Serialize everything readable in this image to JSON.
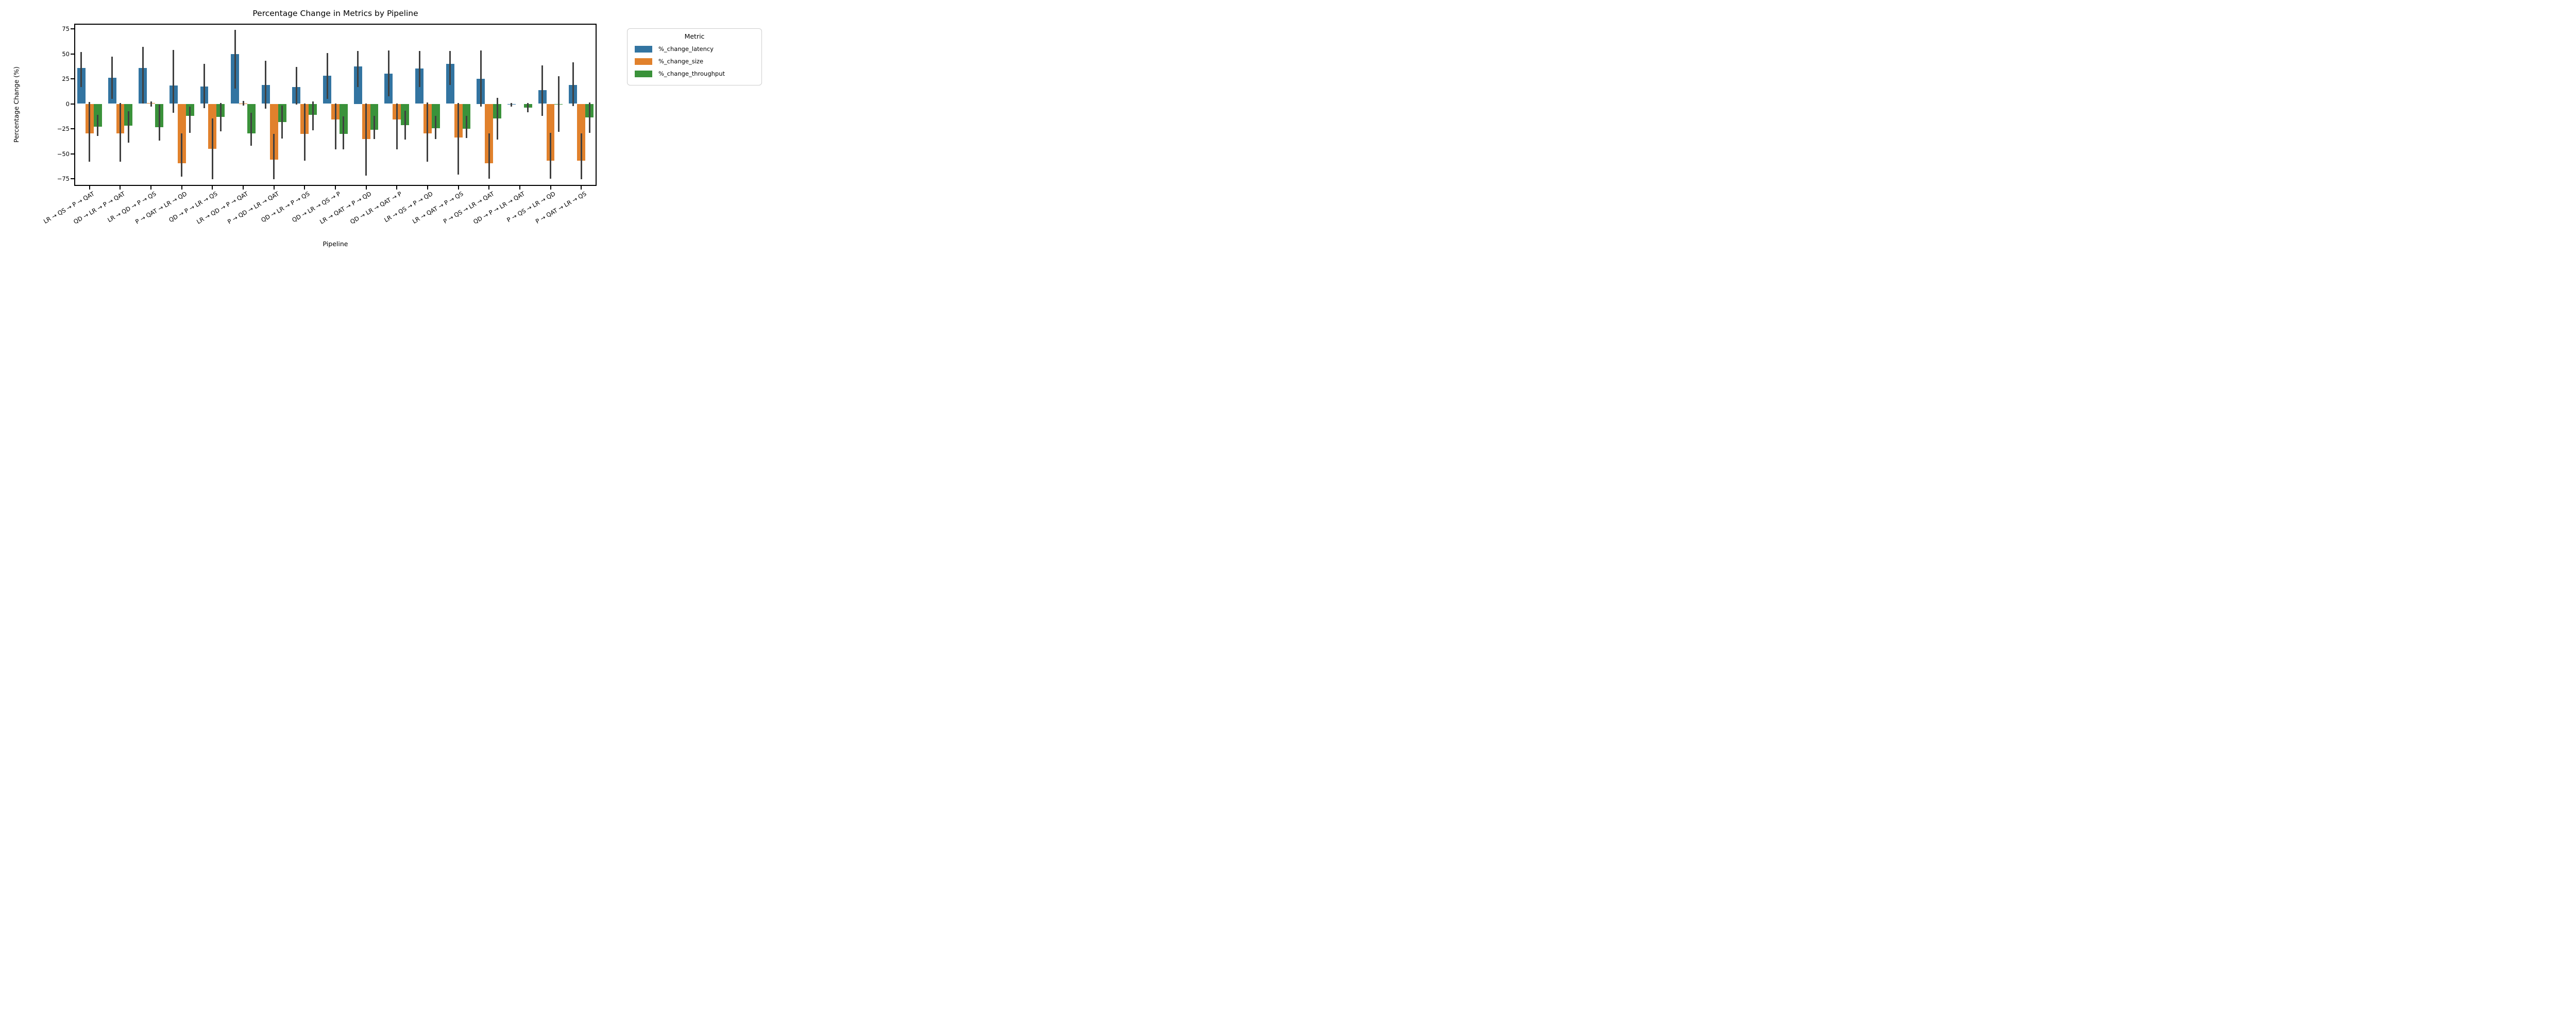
{
  "chart_data": {
    "type": "bar",
    "title": "Percentage Change in Metrics by Pipeline",
    "xlabel": "Pipeline",
    "ylabel": "Percentage Change (%)",
    "ylim": [
      -82,
      80
    ],
    "yticks": [
      75,
      50,
      25,
      0,
      -25,
      -50,
      -75
    ],
    "grid": false,
    "error_bar_color": "#3f3f3f",
    "categories": [
      "LR → QS → P → QAT",
      "QD → LR → P → QAT",
      "LR → QD → P → QS",
      "P → QAT → LR → QD",
      "QD → P → LR → QS",
      "LR → QD → P → QAT",
      "P → QD → LR → QAT",
      "QD → LR → P → QS",
      "QD → LR → QS → P",
      "LR → QAT → P → QD",
      "QD → LR → QAT → P",
      "LR → QS → P → QD",
      "LR → QAT → P → QS",
      "P → QS → LR → QAT",
      "QD → P → LR → QAT",
      "P → QS → LR → QD",
      "P → QAT → LR → QS"
    ],
    "series": [
      {
        "name": "%_change_latency",
        "color": "#3274a1",
        "values": [
          36,
          26,
          36,
          18.5,
          17.5,
          49.5,
          19,
          16.5,
          28,
          37.5,
          30,
          35.5,
          40,
          25,
          -1,
          13.5,
          19
        ],
        "errors": [
          [
            52,
            17
          ],
          [
            47,
            5
          ],
          [
            57,
            0
          ],
          [
            54,
            -9
          ],
          [
            40,
            -4.5
          ],
          [
            74,
            15
          ],
          [
            43,
            -5
          ],
          [
            37,
            -1
          ],
          [
            51,
            5
          ],
          [
            53,
            17
          ],
          [
            53.5,
            7.5
          ],
          [
            53,
            17
          ],
          [
            53,
            19
          ],
          [
            53.5,
            -3
          ],
          [
            1,
            -3
          ],
          [
            38.5,
            -12
          ],
          [
            41.5,
            -2.5
          ]
        ]
      },
      {
        "name": "%_change_size",
        "color": "#e1812c",
        "values": [
          -29.5,
          -29.5,
          1,
          -59.5,
          -45,
          0.5,
          -56,
          -30,
          -15.5,
          -35.5,
          -15.5,
          -29.5,
          -34,
          -59.5,
          0,
          -57,
          -57
        ],
        "errors": [
          [
            2,
            -58
          ],
          [
            1,
            -58
          ],
          [
            2.5,
            -3
          ],
          [
            -29.5,
            -73
          ],
          [
            -14.5,
            -75.5
          ],
          [
            3,
            -2
          ],
          [
            -30,
            -75.5
          ],
          [
            0.5,
            -57
          ],
          [
            0.5,
            -45.5
          ],
          [
            0.5,
            -72
          ],
          [
            0.5,
            -45.5
          ],
          [
            1.5,
            -58
          ],
          [
            1,
            -71
          ],
          [
            -29.5,
            -75
          ],
          [
            0,
            0
          ],
          [
            -29,
            -75
          ],
          [
            -29.5,
            -75.5
          ]
        ]
      },
      {
        "name": "%_change_throughput",
        "color": "#3a923a",
        "values": [
          -23,
          -22,
          -23.5,
          -12,
          -13,
          -29.5,
          -18.5,
          -11,
          -30,
          -26,
          -21.5,
          -24.5,
          -25,
          -14.5,
          -4,
          -0.5,
          -13.5
        ],
        "errors": [
          [
            -11,
            -32
          ],
          [
            -7.5,
            -39
          ],
          [
            -1,
            -37
          ],
          [
            -3,
            -29
          ],
          [
            1,
            -27.5
          ],
          [
            -9,
            -42
          ],
          [
            -2,
            -35
          ],
          [
            2.5,
            -26.5
          ],
          [
            -12.5,
            -45.5
          ],
          [
            -12,
            -35.5
          ],
          [
            -7,
            -36
          ],
          [
            -12,
            -35.5
          ],
          [
            -12,
            -34.5
          ],
          [
            6,
            -36
          ],
          [
            1,
            -8.5
          ],
          [
            27.5,
            -28
          ],
          [
            1.5,
            -29
          ]
        ]
      }
    ],
    "legend": {
      "title": "Metric",
      "position": "upper right, outside plot"
    }
  }
}
